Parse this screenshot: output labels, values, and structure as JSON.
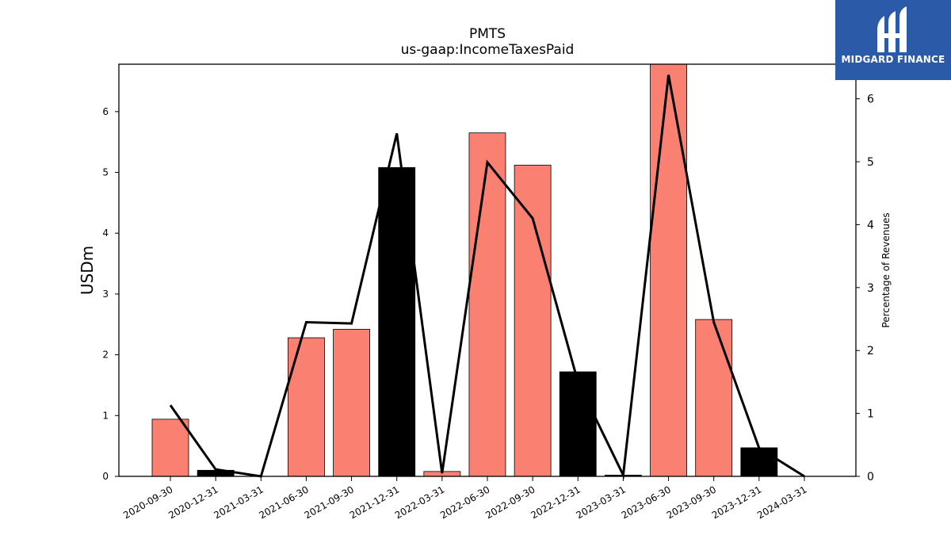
{
  "chart_data": {
    "type": "bar",
    "title": "PMTS",
    "subtitle": "us-gaap:IncomeTaxesPaid",
    "ylabel": "USDm",
    "ylabel_right": "Percentage of Revenues",
    "categories": [
      "2020-09-30",
      "2020-12-31",
      "2021-03-31",
      "2021-06-30",
      "2021-09-30",
      "2021-12-31",
      "2022-03-31",
      "2022-06-30",
      "2022-09-30",
      "2022-12-31",
      "2023-03-31",
      "2023-06-30",
      "2023-09-30",
      "2023-12-31",
      "2024-03-31"
    ],
    "series": [
      {
        "axis": "left",
        "kind": "bar",
        "values": [
          0.94,
          0.1,
          0.0,
          2.28,
          2.42,
          5.08,
          0.08,
          5.65,
          5.12,
          1.72,
          0.02,
          6.78,
          2.58,
          0.47,
          0.0
        ],
        "colors": [
          "#fa8072",
          "#000000",
          "#000000",
          "#fa8072",
          "#fa8072",
          "#000000",
          "#fa8072",
          "#fa8072",
          "#fa8072",
          "#000000",
          "#000000",
          "#fa8072",
          "#fa8072",
          "#000000",
          "#000000"
        ]
      },
      {
        "axis": "right",
        "kind": "line",
        "color": "#000000",
        "values": [
          1.13,
          0.11,
          0.0,
          2.45,
          2.43,
          5.45,
          0.05,
          4.99,
          4.1,
          1.5,
          0.02,
          6.38,
          2.45,
          0.45,
          0.0
        ]
      }
    ],
    "ylim": [
      0,
      6.78
    ],
    "ylim_right": [
      0,
      6.55
    ],
    "yticks": [
      0,
      1,
      2,
      3,
      4,
      5,
      6
    ],
    "yticks_right": [
      0,
      1,
      2,
      3,
      4,
      5,
      6
    ],
    "colors": {
      "positive": "#fa8072",
      "negative": "#000000"
    }
  },
  "logo": {
    "text": "MIDGARD FINANCE",
    "background": "#2a5aa8"
  }
}
